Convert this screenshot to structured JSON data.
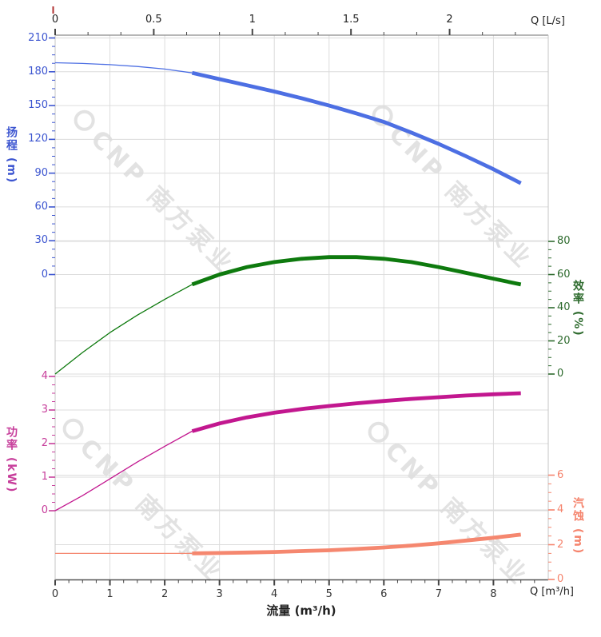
{
  "watermark": {
    "text": "CNP 南方泵业"
  },
  "chart_data": {
    "type": "line",
    "title": "",
    "q_values": [
      0,
      0.5,
      1,
      1.5,
      2,
      2.5,
      3,
      3.5,
      4,
      4.5,
      5,
      5.5,
      6,
      6.5,
      7,
      7.5,
      8,
      8.5
    ],
    "x_axis_bottom": {
      "title": "流量 (m³/h)",
      "unit": "Q [m³/h]",
      "min": 0,
      "max": 9,
      "majors": [
        0,
        1,
        2,
        3,
        4,
        5,
        6,
        7,
        8
      ],
      "minor_step": 0.25
    },
    "x_axis_top": {
      "unit": "Q [L/s]",
      "min": 0,
      "max": 2.5,
      "majors": [
        0,
        0.5,
        1,
        1.5,
        2
      ],
      "minor_step": 0.1666667
    },
    "y_axes": {
      "head": {
        "title": "扬程",
        "unit": "(m)",
        "side": "left",
        "min": 0,
        "max": 210,
        "majors": [
          0,
          30,
          60,
          90,
          120,
          150,
          180,
          210
        ],
        "minor_step": 7.5,
        "color": "#3c55d0"
      },
      "power": {
        "title": "功率",
        "unit": "(kW)",
        "side": "left",
        "min": 0,
        "max": 4,
        "majors": [
          0,
          1,
          2,
          3,
          4
        ],
        "minor_step": 0.25,
        "color": "#c73e9b"
      },
      "eff": {
        "title": "效率",
        "unit": "(%)",
        "side": "right",
        "min": 0,
        "max": 80,
        "majors": [
          0,
          20,
          40,
          60,
          80
        ],
        "minor_step": 5,
        "color": "#2e6b2e"
      },
      "npsh": {
        "title": "汽蚀",
        "unit": "(m)",
        "side": "right",
        "min": 0,
        "max": 6,
        "majors": [
          0,
          2,
          4,
          6
        ],
        "minor_step": 0.5,
        "color": "#f5846d"
      }
    },
    "series": [
      {
        "name": "head",
        "axis": "head",
        "color": "#4d6fe3",
        "bold_from": 2.5,
        "values": [
          188,
          187.4,
          186.3,
          184.7,
          182.4,
          179,
          173.5,
          168,
          162.5,
          156.5,
          150,
          143,
          135.5,
          126,
          116,
          105,
          93.5,
          81
        ]
      },
      {
        "name": "efficiency",
        "axis": "eff",
        "color": "#0e7a0e",
        "bold_from": 2.5,
        "values": [
          0,
          13,
          25,
          35.5,
          45,
          54,
          60,
          64.5,
          67.5,
          69.5,
          70.5,
          70.5,
          69.5,
          67.5,
          64.5,
          61,
          57.5,
          54
        ]
      },
      {
        "name": "power",
        "axis": "power",
        "color": "#c2178f",
        "bold_from": 2.5,
        "values": [
          0,
          0.45,
          0.95,
          1.45,
          1.92,
          2.37,
          2.6,
          2.78,
          2.92,
          3.03,
          3.12,
          3.2,
          3.27,
          3.33,
          3.38,
          3.43,
          3.47,
          3.5
        ]
      },
      {
        "name": "npsh",
        "axis": "npsh",
        "color": "#f5876f",
        "bold_from": 2.5,
        "values": [
          1.5,
          1.5,
          1.5,
          1.5,
          1.5,
          1.5,
          1.52,
          1.55,
          1.58,
          1.63,
          1.68,
          1.75,
          1.84,
          1.95,
          2.08,
          2.24,
          2.4,
          2.58
        ]
      }
    ],
    "legend": null,
    "grid": true
  }
}
